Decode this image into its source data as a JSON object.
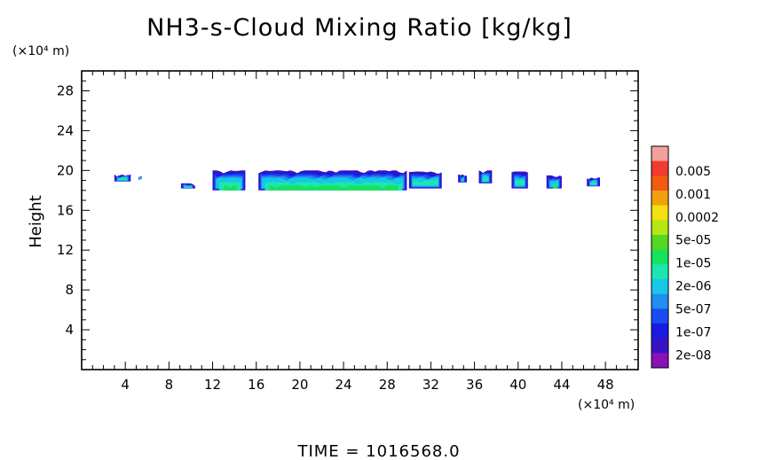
{
  "chart_data": {
    "type": "heatmap",
    "title": "NH3-s-Cloud Mixing Ratio [kg/kg]",
    "xlabel": "",
    "ylabel": "Height",
    "x_unit": "(×10⁴ m)",
    "y_unit": "(×10⁴ m)",
    "xlim": [
      0,
      51
    ],
    "ylim": [
      0,
      30
    ],
    "x_ticks": [
      4,
      8,
      12,
      16,
      20,
      24,
      28,
      32,
      36,
      40,
      44,
      48
    ],
    "y_ticks": [
      4,
      8,
      12,
      16,
      20,
      24,
      28
    ],
    "footer": "TIME  =  1016568.0",
    "colorbar": {
      "levels": [
        "0.005",
        "0.001",
        "0.0002",
        "5e-05",
        "1e-05",
        "2e-06",
        "5e-07",
        "1e-07",
        "2e-08"
      ],
      "colors_top_to_bottom": [
        "#f4a09a",
        "#f23a2e",
        "#f45a10",
        "#f2a10e",
        "#f4e010",
        "#b6e614",
        "#55d820",
        "#18e25a",
        "#1ae8b0",
        "#18c6e8",
        "#1e8ef0",
        "#1a4cf0",
        "#1a1ae0",
        "#3a12c0",
        "#8a10b8"
      ]
    },
    "cloud_cells": [
      {
        "x": [
          3.0,
          4.5
        ],
        "y": [
          18.9,
          19.6
        ],
        "level": "5e-07"
      },
      {
        "x": [
          5.2,
          5.5
        ],
        "y": [
          19.1,
          19.4
        ],
        "level": "1e-07"
      },
      {
        "x": [
          9.1,
          10.4
        ],
        "y": [
          18.2,
          18.7
        ],
        "level": "5e-07"
      },
      {
        "x": [
          12.0,
          15.0
        ],
        "y": [
          18.0,
          20.0
        ],
        "level": "2e-06"
      },
      {
        "x": [
          16.2,
          29.8
        ],
        "y": [
          18.0,
          20.0
        ],
        "level": "2e-06"
      },
      {
        "x": [
          30.0,
          33.0
        ],
        "y": [
          18.2,
          19.9
        ],
        "level": "5e-07"
      },
      {
        "x": [
          34.5,
          35.3
        ],
        "y": [
          18.8,
          19.6
        ],
        "level": "5e-07"
      },
      {
        "x": [
          36.4,
          37.6
        ],
        "y": [
          18.7,
          20.0
        ],
        "level": "5e-07"
      },
      {
        "x": [
          39.4,
          40.9
        ],
        "y": [
          18.2,
          19.9
        ],
        "level": "5e-07"
      },
      {
        "x": [
          42.6,
          44.0
        ],
        "y": [
          18.2,
          19.5
        ],
        "level": "2e-06"
      },
      {
        "x": [
          46.3,
          47.5
        ],
        "y": [
          18.4,
          19.3
        ],
        "level": "5e-07"
      }
    ]
  }
}
